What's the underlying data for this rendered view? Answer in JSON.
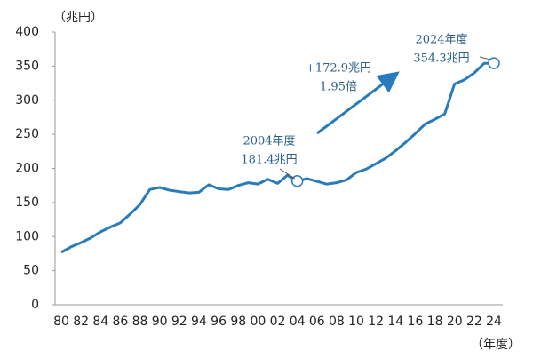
{
  "chart_data": {
    "type": "line",
    "y_unit": "（兆円）",
    "x_unit": "（年度）",
    "categories": [
      "80",
      null,
      "82",
      null,
      "84",
      null,
      "86",
      null,
      "88",
      null,
      "90",
      null,
      "92",
      null,
      "94",
      null,
      "96",
      null,
      "98",
      null,
      "00",
      null,
      "02",
      null,
      "04",
      null,
      "06",
      null,
      "08",
      null,
      "10",
      null,
      "12",
      null,
      "14",
      null,
      "16",
      null,
      "18",
      null,
      "20",
      null,
      "22",
      null,
      "24"
    ],
    "series": [
      {
        "color": "#2a7bbb",
        "values": [
          77,
          85,
          91,
          98,
          107,
          114,
          120,
          133,
          147,
          169,
          172,
          168,
          166,
          164,
          165,
          176,
          170,
          169,
          175,
          179,
          177,
          184,
          178,
          190,
          181.4,
          185,
          181,
          177,
          179,
          183,
          194,
          199,
          207,
          215,
          226,
          238,
          251,
          265,
          272,
          280,
          324,
          330,
          340,
          354,
          354.3
        ]
      }
    ],
    "ylim": [
      0,
      400
    ],
    "yticks": [
      0,
      50,
      100,
      150,
      200,
      250,
      300,
      350,
      400
    ],
    "highlights": [
      24,
      44
    ],
    "annotations": [
      {
        "lines": [
          "2004年度",
          "181.4兆円"
        ]
      },
      {
        "lines": [
          "2024年度",
          "354.3兆円"
        ]
      },
      {
        "lines": [
          "+172.9兆円",
          "1.95倍"
        ]
      }
    ]
  }
}
